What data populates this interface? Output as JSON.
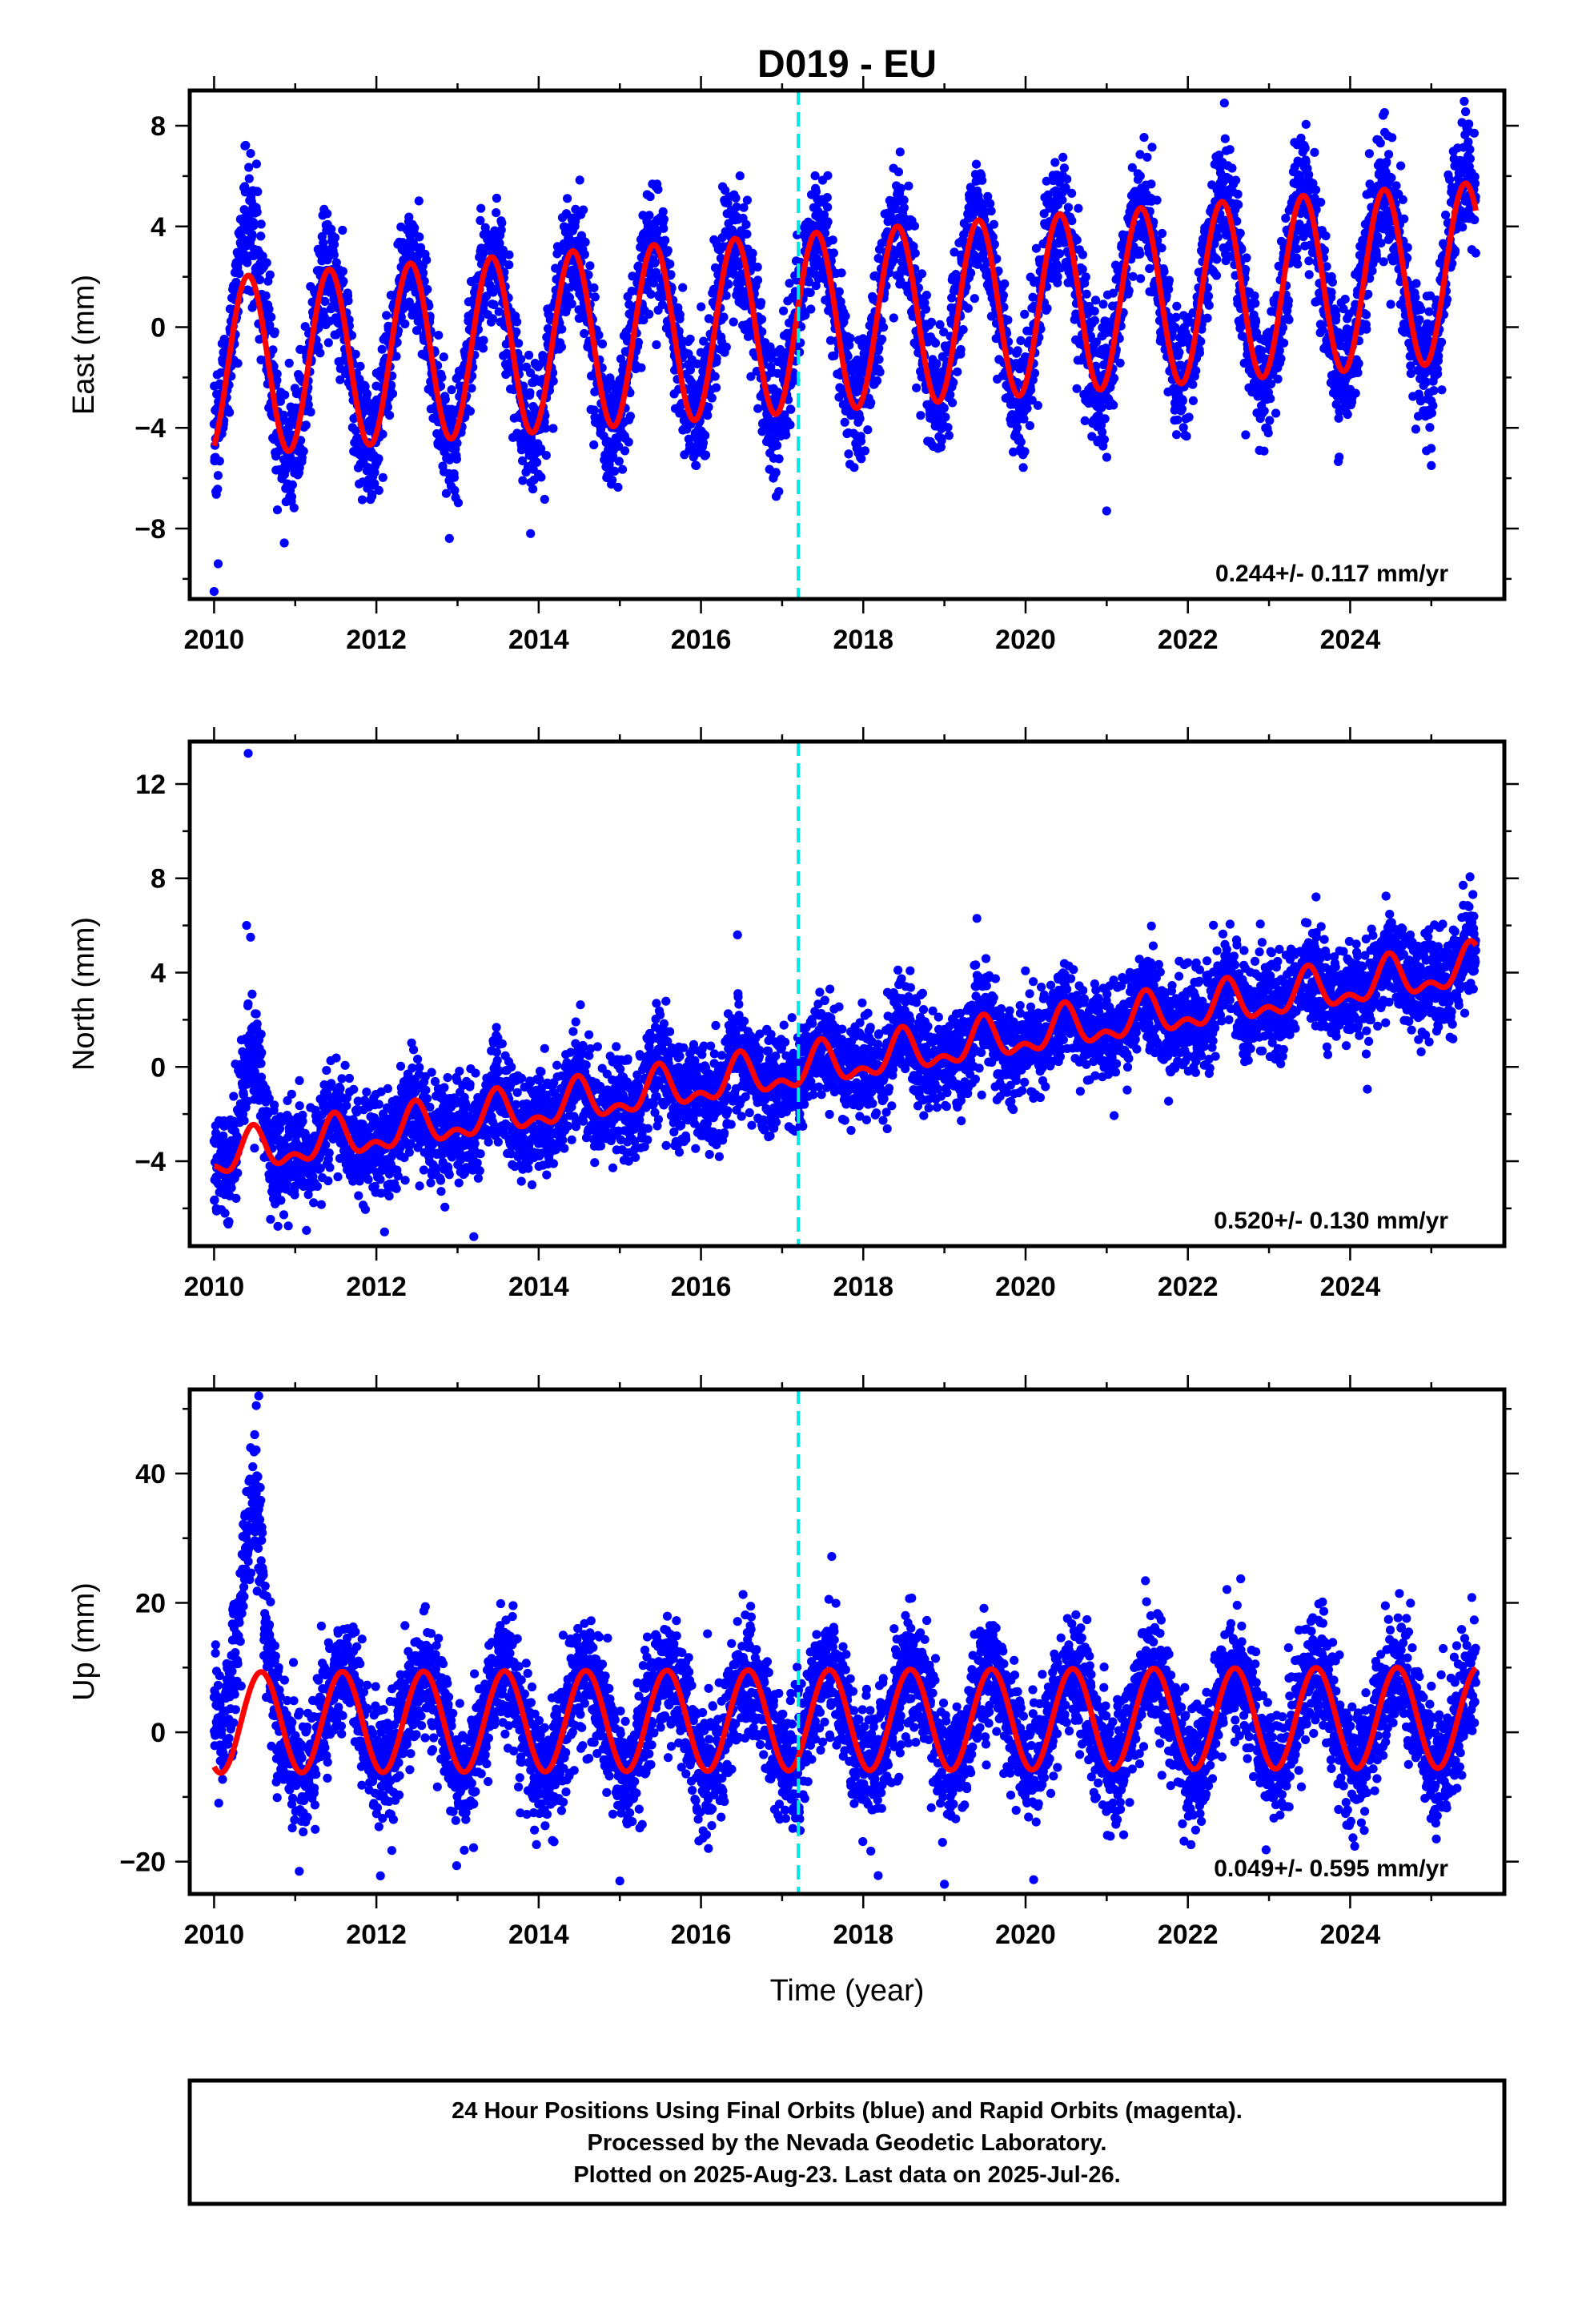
{
  "title": "D019 - EU",
  "xlabel": "Time (year)",
  "footer": {
    "line1": "24 Hour Positions Using Final Orbits (blue) and Rapid Orbits (magenta).",
    "line2": "Processed by the Nevada Geodetic Laboratory.",
    "line3": "Plotted on 2025-Aug-23. Last data on 2025-Jul-26."
  },
  "colors": {
    "points": "#0000ff",
    "fit": "#ff0000",
    "marker": "#00e5e5",
    "axes": "#000000"
  },
  "chart_data": [
    {
      "type": "scatter",
      "component": "east",
      "ylabel": "East (mm)",
      "rate_label": "0.244+/- 0.117 mm/yr",
      "xlim": [
        2009.7,
        2025.9
      ],
      "ylim": [
        -10.8,
        9.4
      ],
      "xticks": [
        2010,
        2012,
        2014,
        2016,
        2018,
        2020,
        2022,
        2024
      ],
      "yticks": [
        -8,
        -4,
        0,
        4,
        8
      ],
      "equipment_change_x": 2017.2,
      "trend": {
        "start": -1.6,
        "rate": 0.244
      },
      "seasonal": {
        "amplitude": 3.55,
        "peak_phase": 0.42,
        "semiannual": 0.0
      },
      "scatter_sigma": 1.25,
      "data_range": [
        2010.0,
        2025.55
      ],
      "outliers": [
        [
          2010.0,
          -10.5
        ],
        [
          2010.05,
          -9.4
        ],
        [
          2010.38,
          7.2
        ],
        [
          2010.45,
          6.9
        ],
        [
          2013.9,
          -8.2
        ],
        [
          2021.0,
          -7.3
        ],
        [
          2022.45,
          8.9
        ],
        [
          2025.0,
          -5.5
        ]
      ]
    },
    {
      "type": "scatter",
      "component": "north",
      "ylabel": "North (mm)",
      "rate_label": "0.520+/- 0.130 mm/yr",
      "xlim": [
        2009.7,
        2025.9
      ],
      "ylim": [
        -7.6,
        13.8
      ],
      "xticks": [
        2010,
        2012,
        2014,
        2016,
        2018,
        2020,
        2022,
        2024
      ],
      "yticks": [
        -4,
        0,
        4,
        8,
        12
      ],
      "equipment_change_x": 2017.2,
      "trend": {
        "start": -3.9,
        "rate": 0.52
      },
      "seasonal": {
        "amplitude": 0.75,
        "peak_phase": 0.48,
        "semiannual": 0.45
      },
      "scatter_sigma": 1.05,
      "data_range": [
        2010.0,
        2025.55
      ],
      "outliers": [
        [
          2010.42,
          13.3
        ],
        [
          2010.4,
          6.0
        ],
        [
          2010.45,
          5.5
        ],
        [
          2016.45,
          5.6
        ],
        [
          2019.4,
          6.3
        ],
        [
          2012.1,
          -7.0
        ],
        [
          2013.2,
          -7.2
        ]
      ]
    },
    {
      "type": "scatter",
      "component": "up",
      "ylabel": "Up (mm)",
      "rate_label": "0.049+/- 0.595 mm/yr",
      "xlim": [
        2009.7,
        2025.9
      ],
      "ylim": [
        -25,
        53
      ],
      "xticks": [
        2010,
        2012,
        2014,
        2016,
        2018,
        2020,
        2022,
        2024
      ],
      "yticks": [
        -20,
        0,
        20,
        40
      ],
      "equipment_change_x": 2017.2,
      "trend": {
        "start": 1.5,
        "rate": 0.049
      },
      "seasonal": {
        "amplitude": 7.8,
        "peak_phase": 0.58,
        "semiannual": 0.0
      },
      "scatter_sigma": 4.8,
      "data_range": [
        2010.0,
        2025.55
      ],
      "outliers": [
        [
          2010.55,
          52
        ],
        [
          2010.52,
          50.5
        ],
        [
          2010.5,
          46
        ],
        [
          2010.45,
          44
        ],
        [
          2015.0,
          -23
        ],
        [
          2019.0,
          -23.5
        ],
        [
          2020.1,
          -22.8
        ],
        [
          2012.05,
          -22.2
        ],
        [
          2011.05,
          -21.5
        ]
      ]
    }
  ]
}
